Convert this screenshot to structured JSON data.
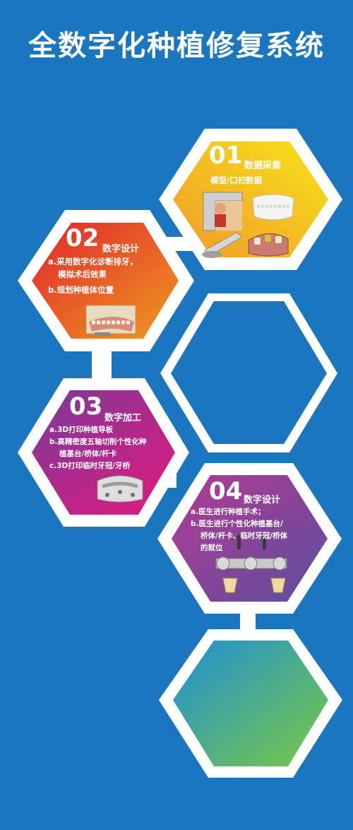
{
  "title": "全数字化种植修复系统",
  "colors": {
    "background": "#1976bf",
    "step1": [
      "#f7e318",
      "#f19a2a"
    ],
    "step2": [
      "#e1252b",
      "#f09a20"
    ],
    "step3": [
      "#7a3b9a",
      "#e5177c"
    ],
    "step4": [
      "#a33b9a",
      "#5b4f9e"
    ],
    "bottom": [
      "#1f8fd6",
      "#7ac943"
    ]
  },
  "steps": [
    {
      "num": "01",
      "heading": "数据采集",
      "lines": [
        "模型/口扫数据"
      ]
    },
    {
      "num": "02",
      "heading": "数字设计",
      "lines": [
        "a.采用数字化诊断排牙，",
        "模拟术后效果",
        "b.规划种植体位置"
      ]
    },
    {
      "num": "03",
      "heading": "数字加工",
      "lines": [
        "a.3D打印种植导板",
        "b.高精密度五轴切削个性化种",
        "植基台/桥体/杆卡",
        "c.3D打印临时牙冠/牙桥"
      ]
    },
    {
      "num": "04",
      "heading": "数字设计",
      "lines": [
        "a.医生进行种植手术；",
        "b.医生进行个性化种植基台/",
        "桥体/杆卡、临时牙冠/桥体",
        "的就位"
      ]
    }
  ],
  "icons": [
    "scanner-icon",
    "dental-model-icon",
    "intraoral-scanner-icon",
    "tooth-model-icon",
    "denture-model-icon",
    "surgical-guide-icon",
    "implant-bar-icon"
  ]
}
